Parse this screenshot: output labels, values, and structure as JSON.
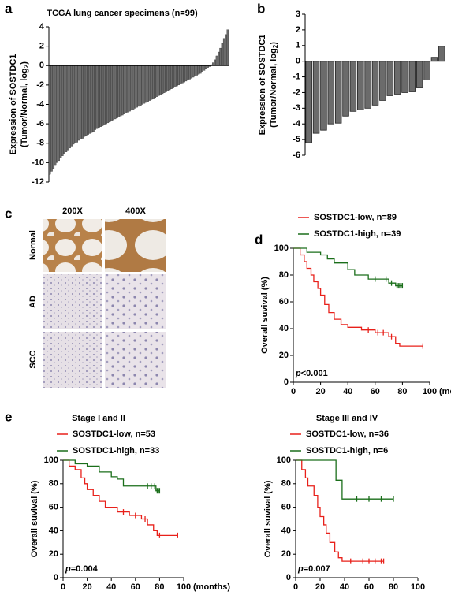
{
  "chart_data": [
    {
      "type": "bar",
      "panel_label": "a",
      "title": "TCGA lung cancer specimens (n=99)",
      "ylabel": {
        "line1": "Expression of SOSTDC1",
        "line2": "(Tumor/Normal, log",
        "subscript": "2",
        "line2_end": ")"
      },
      "color": "#6b6b6b",
      "values": [
        -11.2,
        -10.9,
        -10.6,
        -10.3,
        -10.0,
        -9.8,
        -9.5,
        -9.3,
        -9.1,
        -8.9,
        -8.7,
        -8.5,
        -8.3,
        -8.1,
        -8.0,
        -7.9,
        -7.7,
        -7.6,
        -7.5,
        -7.3,
        -7.2,
        -7.1,
        -7.0,
        -6.9,
        -6.8,
        -6.6,
        -6.5,
        -6.4,
        -6.3,
        -6.2,
        -6.1,
        -6.0,
        -5.9,
        -5.8,
        -5.7,
        -5.6,
        -5.5,
        -5.4,
        -5.3,
        -5.2,
        -5.1,
        -5.0,
        -4.9,
        -4.8,
        -4.7,
        -4.6,
        -4.5,
        -4.4,
        -4.3,
        -4.2,
        -4.1,
        -4.0,
        -3.9,
        -3.8,
        -3.7,
        -3.6,
        -3.5,
        -3.4,
        -3.3,
        -3.2,
        -3.1,
        -3.0,
        -2.9,
        -2.8,
        -2.7,
        -2.6,
        -2.5,
        -2.4,
        -2.3,
        -2.2,
        -2.1,
        -2.0,
        -1.9,
        -1.8,
        -1.7,
        -1.6,
        -1.5,
        -1.4,
        -1.3,
        -1.2,
        -1.1,
        -1.0,
        -0.9,
        -0.8,
        -0.6,
        -0.5,
        -0.3,
        -0.2,
        -0.1,
        0.1,
        0.3,
        0.6,
        1.0,
        1.4,
        1.8,
        2.3,
        2.8,
        3.2,
        3.7
      ],
      "ylim": [
        -12,
        4
      ],
      "yticks": [
        4,
        2,
        0,
        -2,
        -4,
        -6,
        -8,
        -10,
        -12
      ]
    },
    {
      "type": "bar",
      "panel_label": "b",
      "ylabel": {
        "line1": "Expression of SOSTDC1",
        "line2": "(Tumor/Normal, log",
        "subscript": "2",
        "line2_end": ")"
      },
      "color": "#6b6b6b",
      "values": [
        -5.2,
        -4.6,
        -4.4,
        -4.0,
        -3.95,
        -3.5,
        -3.2,
        -3.1,
        -3.0,
        -2.8,
        -2.5,
        -2.2,
        -2.1,
        -2.0,
        -1.95,
        -1.7,
        -1.2,
        0.25,
        0.95
      ],
      "ylim": [
        -6,
        3
      ],
      "yticks": [
        3,
        2,
        1,
        0,
        -1,
        -2,
        -3,
        -4,
        -5,
        -6
      ]
    },
    {
      "type": "step",
      "panel_label": "d",
      "ylabel": "Overall suvival (%)",
      "xlabel": "(months)",
      "p_value": {
        "symbol": "p",
        "text": "<0.001"
      },
      "xlim": [
        0,
        100
      ],
      "xticks": [
        0,
        20,
        40,
        60,
        80,
        100
      ],
      "ylim": [
        0,
        100
      ],
      "yticks": [
        0,
        20,
        40,
        60,
        80,
        100
      ],
      "series": [
        {
          "name": "SOSTDC1-low, n=89",
          "color": "#e8201a",
          "times": [
            0,
            5,
            8,
            10,
            13,
            15,
            18,
            20,
            23,
            26,
            30,
            35,
            40,
            50,
            60,
            70,
            75,
            78,
            95
          ],
          "values": [
            100,
            95,
            90,
            85,
            80,
            75,
            70,
            65,
            58,
            52,
            47,
            43,
            41,
            39,
            37,
            34,
            29,
            27,
            27
          ],
          "censor_times": [
            55,
            62,
            66,
            72,
            95
          ]
        },
        {
          "name": "SOSTDC1-high, n=39",
          "color": "#1a6e1a",
          "times": [
            0,
            10,
            20,
            25,
            30,
            40,
            45,
            55,
            70,
            75,
            80
          ],
          "values": [
            100,
            97,
            95,
            92,
            89,
            84,
            80,
            77,
            74,
            72,
            72
          ],
          "censor_times": [
            60,
            68,
            72,
            76,
            77,
            78,
            79,
            80
          ]
        }
      ]
    },
    {
      "type": "step",
      "panel_label": "e",
      "title": "Stage I and II",
      "ylabel": "Overall suvival (%)",
      "xlabel": "(months)",
      "p_value": {
        "symbol": "p",
        "text": "=0.004"
      },
      "xlim": [
        0,
        100
      ],
      "xticks": [
        0,
        20,
        40,
        60,
        80,
        100
      ],
      "ylim": [
        0,
        100
      ],
      "yticks": [
        0,
        20,
        40,
        60,
        80,
        100
      ],
      "series": [
        {
          "name": "SOSTDC1-low, n=53",
          "color": "#e8201a",
          "times": [
            0,
            5,
            10,
            15,
            18,
            20,
            25,
            30,
            35,
            45,
            55,
            65,
            70,
            75,
            78,
            95
          ],
          "values": [
            100,
            95,
            92,
            85,
            80,
            75,
            70,
            65,
            60,
            56,
            53,
            50,
            45,
            40,
            36,
            36
          ],
          "censor_times": [
            50,
            60,
            68,
            80,
            95
          ]
        },
        {
          "name": "SOSTDC1-high, n=33",
          "color": "#1a6e1a",
          "times": [
            0,
            10,
            20,
            30,
            40,
            45,
            50,
            75,
            77,
            80
          ],
          "values": [
            100,
            97,
            95,
            90,
            86,
            84,
            78,
            78,
            74,
            74
          ],
          "censor_times": [
            70,
            73,
            76,
            78,
            79,
            80
          ]
        }
      ]
    },
    {
      "type": "step",
      "title": "Stage III and IV",
      "ylabel": "Overall suvival (%)",
      "p_value": {
        "symbol": "p",
        "text": "=0.007"
      },
      "xlim": [
        0,
        100
      ],
      "xticks": [
        0,
        20,
        40,
        60,
        80,
        100
      ],
      "ylim": [
        0,
        100
      ],
      "yticks": [
        0,
        20,
        40,
        60,
        80,
        100
      ],
      "series": [
        {
          "name": "SOSTDC1-low, n=36",
          "color": "#e8201a",
          "times": [
            0,
            5,
            8,
            10,
            15,
            18,
            20,
            23,
            25,
            28,
            32,
            35,
            38,
            72
          ],
          "values": [
            100,
            92,
            85,
            78,
            70,
            60,
            52,
            45,
            38,
            30,
            22,
            17,
            14,
            14
          ],
          "censor_times": [
            45,
            55,
            60,
            65,
            70,
            72
          ]
        },
        {
          "name": "SOSTDC1-high, n=6",
          "color": "#1a6e1a",
          "times": [
            0,
            33,
            38,
            80
          ],
          "values": [
            100,
            83,
            67,
            67
          ],
          "censor_times": [
            50,
            60,
            70,
            80
          ]
        }
      ]
    }
  ],
  "image_panel": {
    "panel_label": "c",
    "columns": [
      "200X",
      "400X"
    ],
    "rows": [
      "Normal",
      "AD",
      "SCC"
    ]
  }
}
